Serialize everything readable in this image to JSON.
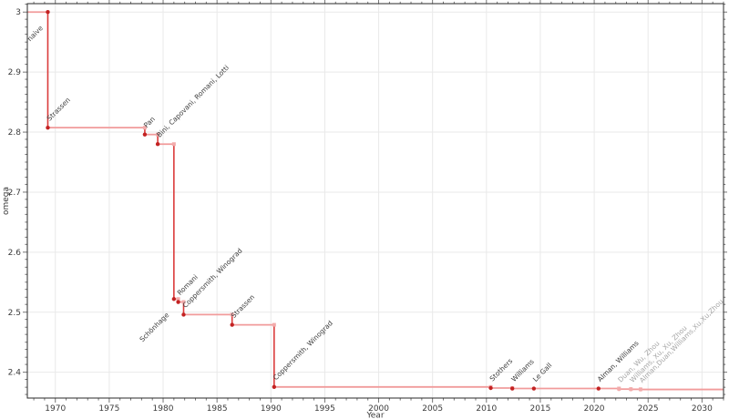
{
  "chart_data": {
    "type": "line",
    "subtype": "step-post",
    "title": "",
    "xlabel": "Year",
    "ylabel": "omega",
    "xlim": [
      1967.4,
      2032.0
    ],
    "ylim": [
      2.357,
      3.014
    ],
    "grid": "major",
    "legend": "none",
    "x_major_ticks": [
      1970,
      1975,
      1980,
      1985,
      1990,
      1995,
      2000,
      2005,
      2010,
      2015,
      2020,
      2025,
      2030
    ],
    "x_minor_step": 1,
    "y_major_ticks": [
      {
        "value": 2.4,
        "label": "2.4"
      },
      {
        "value": 2.5,
        "label": "2.5"
      },
      {
        "value": 2.6,
        "label": "2.6"
      },
      {
        "value": 2.7,
        "label": "2.7"
      },
      {
        "value": 2.8,
        "label": "2.8"
      },
      {
        "value": 2.9,
        "label": "2.9"
      },
      {
        "value": 3.0,
        "label": "3"
      }
    ],
    "y_minor_step": 0.0125,
    "colors": {
      "line_horizontal": "#f19b9b",
      "line_vertical": "#da3b3b",
      "marker": "#c32222",
      "marker_faded": "#f2abab",
      "label": "#3c3c3c",
      "label_faded": "#a6a6a6",
      "grid": "#e9e9e9",
      "frame": "#2a2a2a",
      "tick": "#666666",
      "tick_label": "#3a3a3a",
      "axis_title": "#3a3a3a"
    },
    "points": [
      {
        "year": 1969.3,
        "omega": 3.0,
        "label": "naive",
        "label_side": "below",
        "faded": false
      },
      {
        "year": 1969.3,
        "omega": 2.8074,
        "label": "Strassen",
        "label_side": "above",
        "faded": false
      },
      {
        "year": 1978.3,
        "omega": 2.796,
        "label": "Pan",
        "label_side": "above",
        "faded": false
      },
      {
        "year": 1979.5,
        "omega": 2.78,
        "label": "Bini, Capovani, Romani, Lotti",
        "label_side": "above",
        "faded": false
      },
      {
        "year": 1981.0,
        "omega": 2.522,
        "label": "Schönhage",
        "label_side": "below",
        "faded": false
      },
      {
        "year": 1981.4,
        "omega": 2.517,
        "label": "Romani",
        "label_side": "above",
        "faded": false
      },
      {
        "year": 1981.9,
        "omega": 2.496,
        "label": "Coppersmith, Winograd",
        "label_side": "above",
        "faded": false
      },
      {
        "year": 1986.4,
        "omega": 2.479,
        "label": "Strassen",
        "label_side": "above",
        "faded": false
      },
      {
        "year": 1990.3,
        "omega": 2.3755,
        "label": "Coppersmith, Winograd",
        "label_side": "above",
        "faded": false
      },
      {
        "year": 2010.4,
        "omega": 2.3737,
        "label": "Stothers",
        "label_side": "above",
        "faded": false
      },
      {
        "year": 2012.4,
        "omega": 2.3729,
        "label": "Williams",
        "label_side": "above",
        "faded": false
      },
      {
        "year": 2014.4,
        "omega": 2.3729,
        "label": "Le Gall",
        "label_side": "above",
        "faded": false
      },
      {
        "year": 2020.4,
        "omega": 2.3729,
        "label": "Alman, Williams",
        "label_side": "above",
        "faded": false
      },
      {
        "year": 2022.3,
        "omega": 2.3719,
        "label": "Duan, Wu, Zhou",
        "label_side": "above",
        "faded": true
      },
      {
        "year": 2023.4,
        "omega": 2.3716,
        "label": "Williams, Xu, Xu, Zhou",
        "label_side": "above",
        "faded": true
      },
      {
        "year": 2024.3,
        "omega": 2.3713,
        "label": "Alman,Duan,Williams,Xu,Xu,Zhou",
        "label_side": "above",
        "faded": true
      }
    ]
  }
}
